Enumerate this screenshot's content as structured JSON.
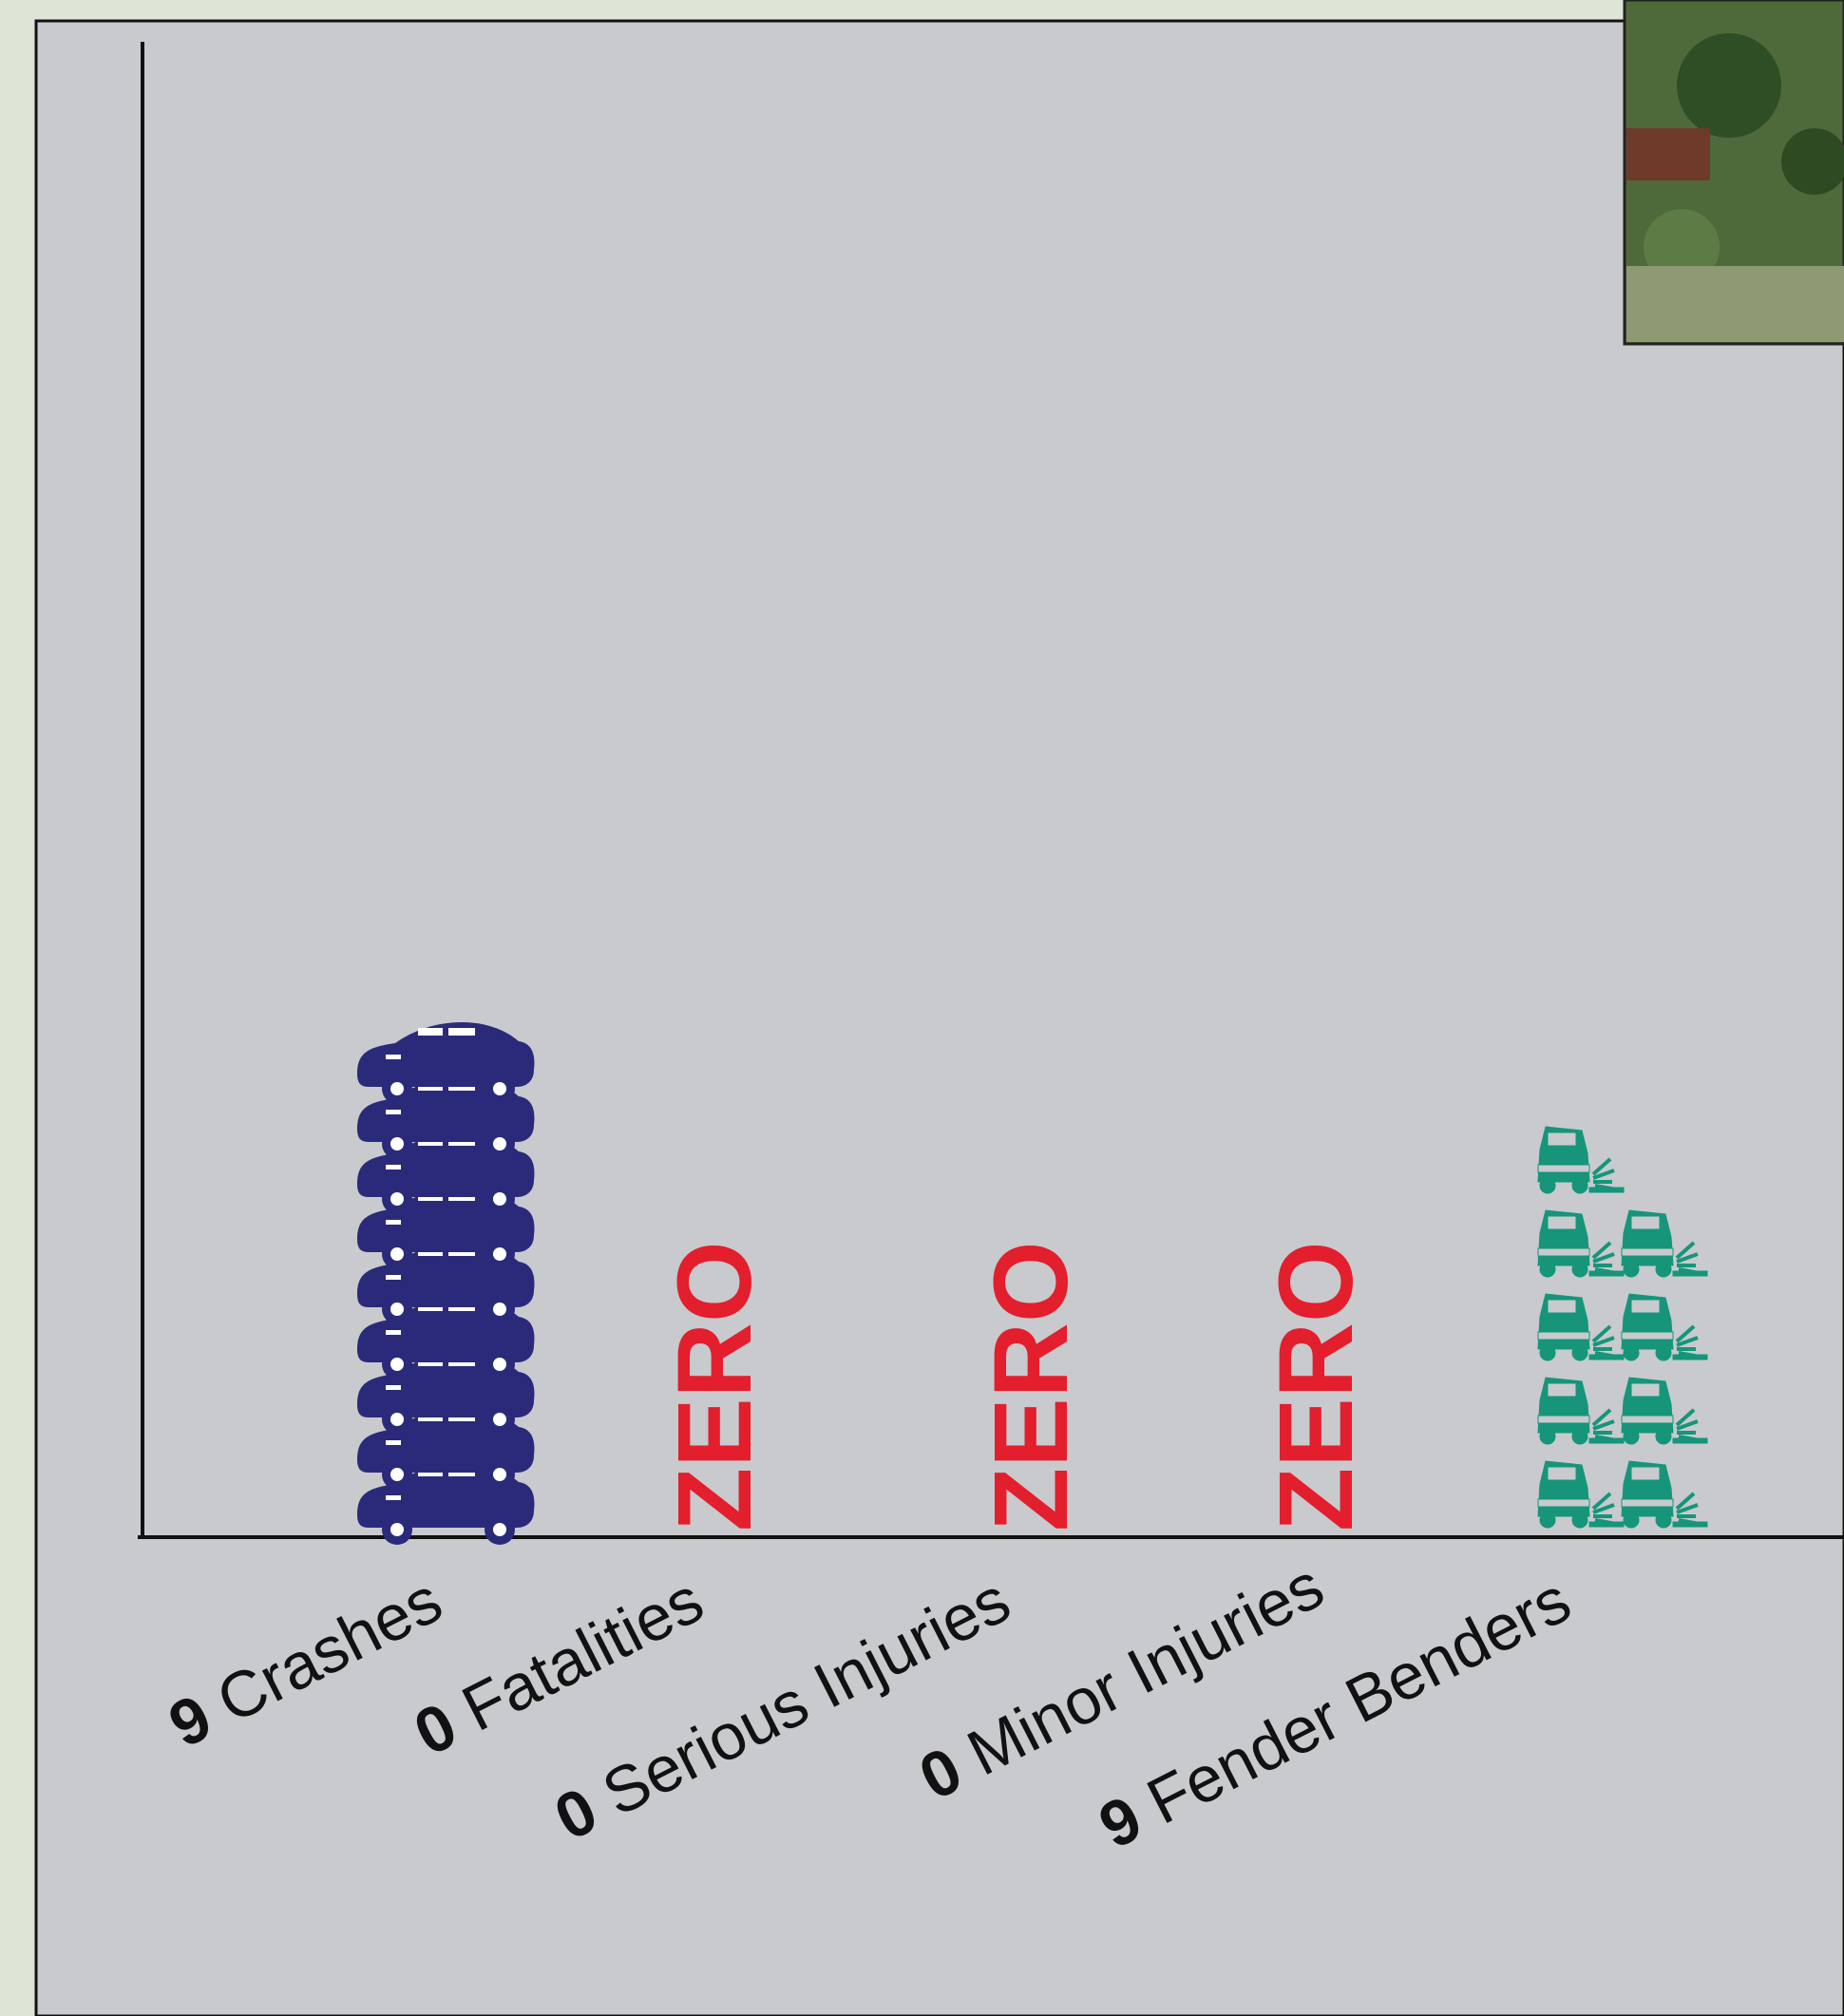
{
  "chart_data": {
    "type": "bar",
    "title": "",
    "xlabel": "",
    "ylabel": "",
    "categories": [
      {
        "count": "9",
        "label": "Crashes",
        "value": 9,
        "marker": "car-icon",
        "color": "#2b2a7a"
      },
      {
        "count": "0",
        "label": "Fatalities",
        "value": 0,
        "zero_text": "ZERO",
        "color": "#e31e2d"
      },
      {
        "count": "0",
        "label": "Serious Injuries",
        "value": 0,
        "zero_text": "ZERO",
        "color": "#e31e2d"
      },
      {
        "count": "0",
        "label": "Minor Injuries",
        "value": 0,
        "zero_text": "ZERO",
        "color": "#e31e2d"
      },
      {
        "count": "9",
        "label": "Fender Benders",
        "value": 9,
        "marker": "fender-bender-icon",
        "color": "#16957a"
      }
    ],
    "grid": false,
    "legend": "none"
  },
  "colors": {
    "page_background": "#dfe5d6",
    "plot_background": "#c8cacd",
    "axis": "#111111"
  },
  "inset": {
    "icon": "aerial-photo-thumbnail"
  }
}
